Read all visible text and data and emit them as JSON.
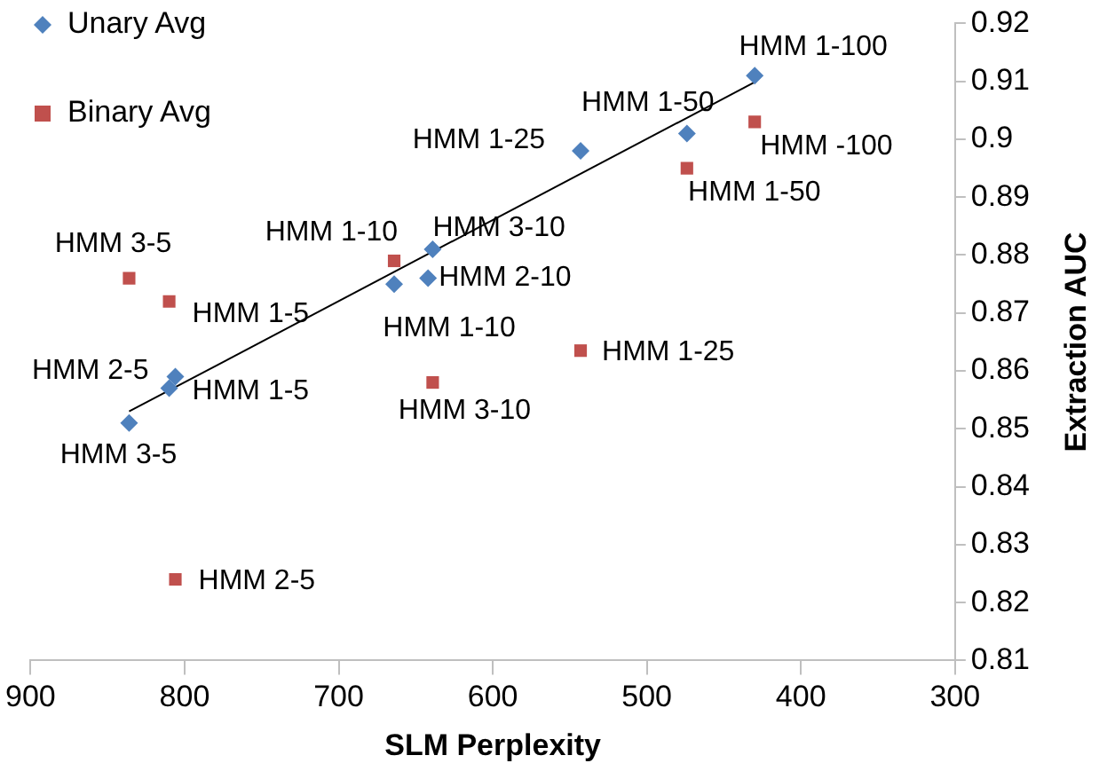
{
  "chart_data": {
    "type": "scatter",
    "xlabel": "SLM Perplexity",
    "ylabel": "Extraction AUC",
    "xlim": [
      900,
      300
    ],
    "xticks": [
      900,
      800,
      700,
      600,
      500,
      400,
      300
    ],
    "ylim": [
      0.81,
      0.92
    ],
    "yticks": [
      0.81,
      0.82,
      0.83,
      0.84,
      0.85,
      0.86,
      0.87,
      0.88,
      0.89,
      0.9,
      0.91,
      0.92
    ],
    "grid": false,
    "legend": "top left",
    "series": [
      {
        "name": "Unary Avg",
        "color": "#4f81bd",
        "marker": "diamond",
        "x": [
          836,
          806,
          810,
          664,
          642,
          639,
          543,
          474,
          430
        ],
        "values": [
          0.851,
          0.859,
          0.857,
          0.875,
          0.876,
          0.881,
          0.898,
          0.901,
          0.911
        ]
      },
      {
        "name": "Binary Avg",
        "color": "#c0504d",
        "marker": "square",
        "x": [
          836,
          810,
          664,
          639,
          543,
          474,
          430,
          806
        ],
        "values": [
          0.876,
          0.872,
          0.879,
          0.858,
          0.8635,
          0.895,
          0.903,
          0.824
        ]
      },
      {
        "type": "line",
        "color": "#000000",
        "marker": "none",
        "x": [
          836,
          429
        ],
        "values": [
          0.853,
          0.91
        ]
      }
    ],
    "annotations": [
      {
        "text": "HMM 3-5",
        "x": 836,
        "y": 0.851
      },
      {
        "text": "HMM 2-5",
        "x": 806,
        "y": 0.859
      },
      {
        "text": "HMM 1-5",
        "x": 810,
        "y": 0.857
      },
      {
        "text": "HMM 1-10",
        "x": 664,
        "y": 0.875
      },
      {
        "text": "HMM 2-10",
        "x": 642,
        "y": 0.876
      },
      {
        "text": "HMM 3-10",
        "x": 639,
        "y": 0.881
      },
      {
        "text": "HMM 1-25",
        "x": 543,
        "y": 0.898
      },
      {
        "text": "HMM 1-50",
        "x": 474,
        "y": 0.901
      },
      {
        "text": "HMM 1-100",
        "x": 430,
        "y": 0.911
      },
      {
        "text": "HMM 3-5",
        "x": 836,
        "y": 0.876
      },
      {
        "text": "HMM 1-5",
        "x": 810,
        "y": 0.872
      },
      {
        "text": "HMM 1-10",
        "x": 664,
        "y": 0.879
      },
      {
        "text": "HMM 3-10",
        "x": 639,
        "y": 0.858
      },
      {
        "text": "HMM 1-25",
        "x": 543,
        "y": 0.8635
      },
      {
        "text": "HMM 1-50",
        "x": 474,
        "y": 0.895
      },
      {
        "text": "HMM -100",
        "x": 430,
        "y": 0.903
      },
      {
        "text": "HMM 2-5",
        "x": 806,
        "y": 0.824
      }
    ]
  }
}
